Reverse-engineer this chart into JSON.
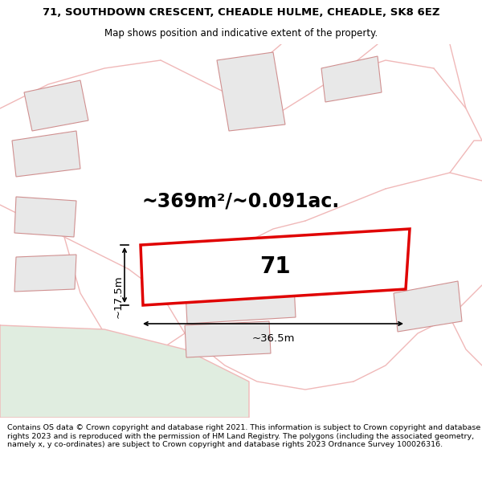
{
  "title_line1": "71, SOUTHDOWN CRESCENT, CHEADLE HULME, CHEADLE, SK8 6EZ",
  "title_line2": "Map shows position and indicative extent of the property.",
  "area_text": "~369m²/~0.091ac.",
  "property_number": "71",
  "width_label": "~36.5m",
  "height_label": "~17.5m",
  "footer_text": "Contains OS data © Crown copyright and database right 2021. This information is subject to Crown copyright and database rights 2023 and is reproduced with the permission of HM Land Registry. The polygons (including the associated geometry, namely x, y co-ordinates) are subject to Crown copyright and database rights 2023 Ordnance Survey 100026316.",
  "bg_color": "#f7f7f5",
  "map_bg": "#f7f7f5",
  "property_fill": "#ffffff",
  "property_edge": "#e00000",
  "road_color": "#f0b8b8",
  "bldg_fill": "#e8e8e8",
  "bldg_edge": "#d09090",
  "green_fill": "#e0ede0",
  "white": "#ffffff"
}
